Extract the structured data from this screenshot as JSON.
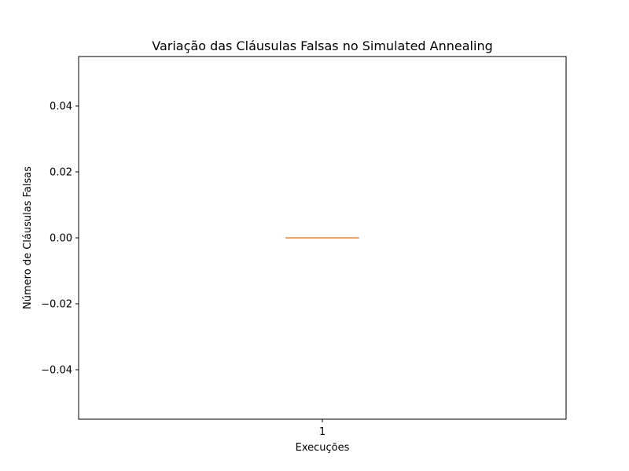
{
  "chart_data": {
    "type": "box",
    "title": "Variação das Cláusulas Falsas no Simulated Annealing",
    "xlabel": "Execuções",
    "ylabel": "Número de Cláusulas Falsas",
    "categories": [
      "1"
    ],
    "boxes": [
      {
        "category": "1",
        "min": 0,
        "q1": 0,
        "median": 0,
        "q3": 0,
        "max": 0
      }
    ],
    "ylim": [
      -0.055,
      0.055
    ],
    "yticks": [
      -0.04,
      -0.02,
      0.0,
      0.02,
      0.04
    ],
    "ytick_labels": [
      "−0.04",
      "−0.02",
      "0.00",
      "0.02",
      "0.04"
    ],
    "grid": false,
    "colors": {
      "median": "#e8873a",
      "box": "#000000"
    }
  }
}
